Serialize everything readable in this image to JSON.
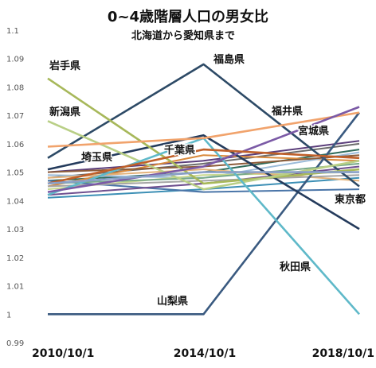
{
  "chart_data": {
    "type": "line",
    "title": "0~4歳階層人口の男女比",
    "subtitle": "北海道から愛知県まで",
    "categories": [
      "2010/10/1",
      "2014/10/1",
      "2018/10/1"
    ],
    "y_ticks": [
      "0.99",
      "1",
      "1.01",
      "1.02",
      "1.03",
      "1.04",
      "1.05",
      "1.06",
      "1.07",
      "1.08",
      "1.09",
      "1.1"
    ],
    "ylim": [
      0.99,
      1.1
    ],
    "grid": false,
    "series": [
      {
        "name": "福島県",
        "values": [
          1.055,
          1.088,
          1.045
        ],
        "color": "#2d4a66"
      },
      {
        "name": "山梨県",
        "values": [
          1.0,
          1.0,
          1.071
        ],
        "color": "#3a5a80"
      },
      {
        "name": "東京都",
        "values": [
          1.051,
          1.063,
          1.03
        ],
        "color": "#243b5c"
      },
      {
        "name": "岩手県",
        "values": [
          1.083,
          1.046,
          1.051
        ],
        "color": "#a7b85a"
      },
      {
        "name": "新潟県",
        "values": [
          1.068,
          1.044,
          1.054
        ],
        "color": "#b9cf86"
      },
      {
        "name": "秋田県",
        "values": [
          1.042,
          1.062,
          1.0
        ],
        "color": "#5fb9c9"
      },
      {
        "name": "福井県",
        "values": [
          1.059,
          1.062,
          1.071
        ],
        "color": "#f1a36c"
      },
      {
        "name": "宮城県",
        "values": [
          1.043,
          1.052,
          1.073
        ],
        "color": "#7b5aa6"
      },
      {
        "name": "千葉県",
        "values": [
          1.046,
          1.058,
          1.055
        ],
        "color": "#c0602a"
      },
      {
        "name": "埼玉県",
        "values": [
          1.046,
          1.05,
          1.05
        ],
        "color": "#8aa0c8"
      },
      {
        "values": [
          1.05,
          1.054,
          1.061
        ],
        "color": "#5a3d7a"
      },
      {
        "values": [
          1.048,
          1.053,
          1.06
        ],
        "color": "#6b6b6b"
      },
      {
        "values": [
          1.047,
          1.05,
          1.058
        ],
        "color": "#2f6b5a"
      },
      {
        "values": [
          1.045,
          1.056,
          1.054
        ],
        "color": "#d98a3d"
      },
      {
        "values": [
          1.049,
          1.048,
          1.057
        ],
        "color": "#9bbbd9"
      },
      {
        "values": [
          1.041,
          1.044,
          1.048
        ],
        "color": "#3c8fb5"
      },
      {
        "values": [
          1.047,
          1.043,
          1.044
        ],
        "color": "#4a75a8"
      },
      {
        "values": [
          1.044,
          1.049,
          1.05
        ],
        "color": "#c9d98f"
      },
      {
        "values": [
          1.05,
          1.052,
          1.056
        ],
        "color": "#8d5c3a"
      },
      {
        "values": [
          1.046,
          1.048,
          1.053
        ],
        "color": "#77a98a"
      },
      {
        "values": [
          1.042,
          1.046,
          1.052
        ],
        "color": "#6f4f8f"
      },
      {
        "values": [
          1.048,
          1.051,
          1.047
        ],
        "color": "#e3b27a"
      },
      {
        "values": [
          1.045,
          1.047,
          1.049
        ],
        "color": "#a5a5a5"
      }
    ],
    "annotations": [
      "岩手県",
      "福島県",
      "新潟県",
      "福井県",
      "宮城県",
      "千葉県",
      "埼玉県",
      "東京都",
      "秋田県",
      "山梨県"
    ]
  }
}
